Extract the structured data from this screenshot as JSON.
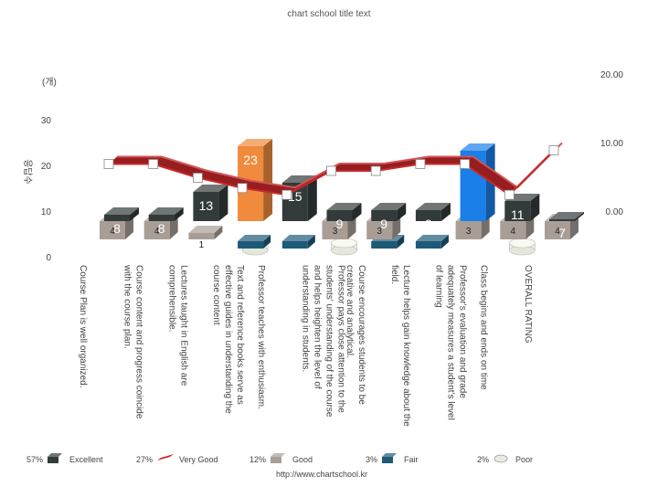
{
  "chart_data": {
    "type": "bar",
    "title": "chart school title text",
    "y_unit_label": "(개)",
    "ylabel": "응답수",
    "left_ticks": [
      "0",
      "10",
      "20",
      "30"
    ],
    "right_ticks": [
      "0.00",
      "10.00",
      "20.00"
    ],
    "ylim": [
      0,
      40
    ],
    "y2lim": [
      -6.67,
      20
    ],
    "categories": [
      "Course Plan is well organized.",
      "Course content and progress coincide with the course plan.",
      "Lectures taught in English are comprehensible.",
      "Text and reference books serve as effective guides in understanding the course content",
      "Professor teaches with enthusiasm.",
      "Professor pays close attention to the students' understanding of the course and helps heighten the level of understanding in students.",
      "Course encourages students to be creative and analytical.",
      "Lecture helps gain knowledge about the field.",
      "Professor's evaluation and grade adequately measures a student's level of learning",
      "Class begins and ends on time",
      "OVERALL RATING"
    ],
    "category_lines": [
      [
        "Course Plan is well organized."
      ],
      [
        "Course content and progress coincide",
        "with the course plan."
      ],
      [
        "Lectures taught in English are",
        "comprehensible."
      ],
      [
        "Text and reference books serve as",
        "effective guides in understanding the",
        "course content"
      ],
      [
        "Professor teaches with enthusiasm."
      ],
      [
        "Professor pays close attention to the",
        "students' understanding of the course",
        "and helps heighten the level of",
        "understanding in students."
      ],
      [
        "Course encourages students to be",
        "creative and analytical."
      ],
      [
        "Lecture helps gain knowledge about the",
        "field."
      ],
      [
        "Professor's evaluation and grade",
        "adequately measures a student's level",
        "of learning"
      ],
      [
        "Class begins and ends on time"
      ],
      [
        "OVERALL RATING"
      ]
    ],
    "series": [
      {
        "name": "Excellent",
        "type": "bar",
        "percent": "57%",
        "color": "#333a3a",
        "values": [
          8,
          8,
          13,
          23,
          15,
          9,
          9,
          9,
          22,
          11,
          7
        ],
        "highlight": {
          "3": "#f08a3c",
          "8": "#1a7fe8"
        }
      },
      {
        "name": "Very Good",
        "type": "line",
        "percent": "27%",
        "color": "#c8282a",
        "values": [
          7.0,
          7.0,
          5.0,
          3.5,
          2.5,
          6.0,
          6.0,
          7.0,
          7.0,
          2.5,
          9.0
        ]
      },
      {
        "name": "Good",
        "type": "bar",
        "percent": "12%",
        "color": "#a89e96",
        "values": [
          4,
          4,
          1,
          null,
          null,
          3,
          3,
          null,
          3,
          4,
          4
        ]
      },
      {
        "name": "Fair",
        "type": "bar",
        "percent": "3%",
        "color": "#1e5a78",
        "values": [
          null,
          null,
          null,
          1,
          1,
          null,
          1,
          1,
          null,
          null,
          null
        ]
      },
      {
        "name": "Poor",
        "type": "cylinder",
        "percent": "2%",
        "color": "#e8ece0",
        "values": [
          null,
          null,
          null,
          1,
          null,
          1,
          null,
          null,
          null,
          1,
          null
        ]
      }
    ],
    "legend_position": "bottom",
    "grid": false
  },
  "footer": {
    "url": "http://www.chartschool.kr"
  }
}
